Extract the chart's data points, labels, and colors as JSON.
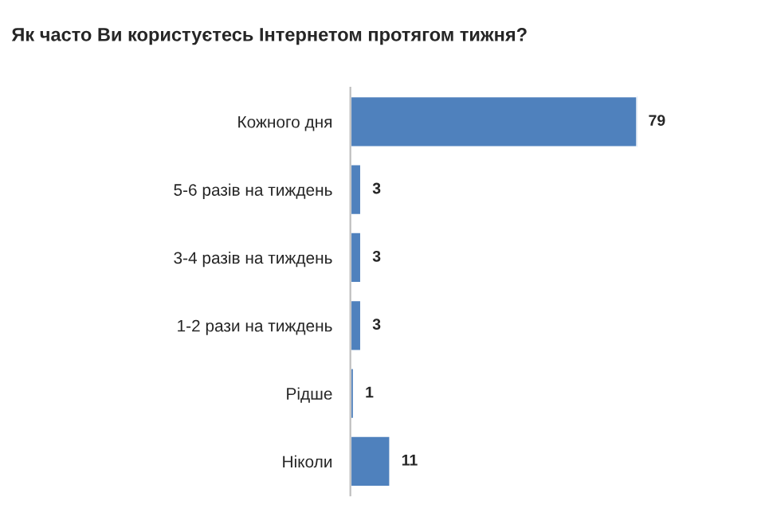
{
  "chart_data": {
    "type": "bar",
    "orientation": "horizontal",
    "title": "Як часто Ви користуєтесь Інтернетом протягом тижня?",
    "categories": [
      "Кожного дня",
      "5-6 разів на тиждень",
      "3-4 разів на тиждень",
      "1-2 рази на тиждень",
      "Рідше",
      "Ніколи"
    ],
    "values": [
      79,
      3,
      3,
      3,
      1,
      11
    ],
    "color": "#4f81bd",
    "data_labels": true,
    "grid": false,
    "legend": false
  }
}
